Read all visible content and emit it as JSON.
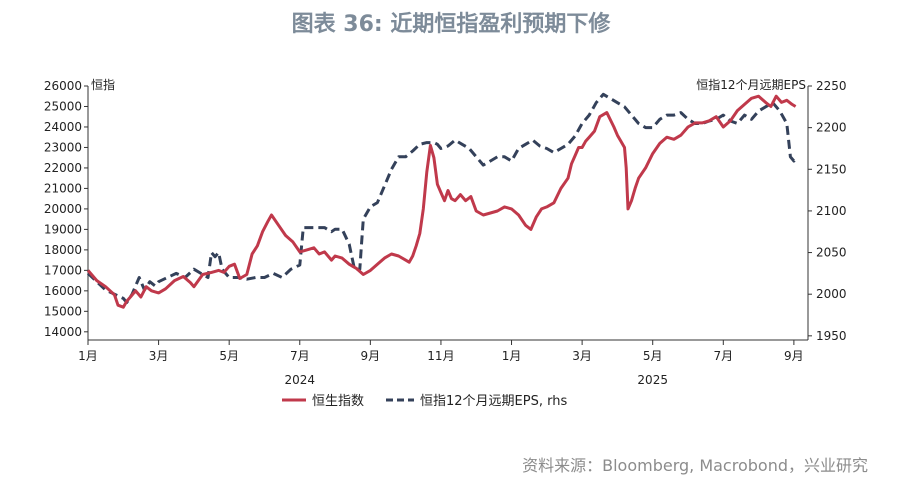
{
  "header": {
    "title": "图表 36: 近期恒指盈利预期下修"
  },
  "footer": {
    "source": "资料来源：Bloomberg, Macrobond，兴业研究"
  },
  "chart_data": {
    "type": "line",
    "title": "图表 36: 近期恒指盈利预期下修",
    "y_left_label": "恒指",
    "y_right_label": "恒指12个月远期EPS",
    "x_tick_labels": [
      "1月",
      "3月",
      "5月",
      "7月",
      "9月",
      "11月",
      "1月",
      "3月",
      "5月",
      "7月",
      "9月"
    ],
    "x_tick_months": [
      0,
      2,
      4,
      6,
      8,
      10,
      12,
      14,
      16,
      18,
      20
    ],
    "year_labels": [
      {
        "label": "2024",
        "month": 6
      },
      {
        "label": "2025",
        "month": 16
      }
    ],
    "x_range_months": [
      0,
      20.4
    ],
    "y_left_ticks": [
      14000,
      15000,
      16000,
      17000,
      18000,
      19000,
      20000,
      21000,
      22000,
      23000,
      24000,
      25000,
      26000
    ],
    "y_left_range": [
      13600,
      26000
    ],
    "y_right_ticks": [
      1950,
      2000,
      2050,
      2100,
      2150,
      2200,
      2250
    ],
    "y_right_range": [
      1945,
      2250
    ],
    "legend_position": "bottom",
    "grid": false,
    "series": [
      {
        "name": "恒生指数",
        "axis": "left",
        "color": "#c0394b",
        "style": "solid",
        "x": [
          0.0,
          0.25,
          0.5,
          0.75,
          0.85,
          1.0,
          1.1,
          1.2,
          1.35,
          1.5,
          1.65,
          1.8,
          2.0,
          2.2,
          2.45,
          2.7,
          2.9,
          3.0,
          3.25,
          3.5,
          3.7,
          3.85,
          4.0,
          4.15,
          4.3,
          4.5,
          4.65,
          4.8,
          4.95,
          5.1,
          5.2,
          5.4,
          5.6,
          5.8,
          6.0,
          6.2,
          6.4,
          6.55,
          6.7,
          6.9,
          7.0,
          7.2,
          7.4,
          7.5,
          7.6,
          7.8,
          8.0,
          8.2,
          8.4,
          8.6,
          8.8,
          9.0,
          9.1,
          9.2,
          9.3,
          9.4,
          9.5,
          9.6,
          9.7,
          9.8,
          9.9,
          10.0,
          10.1,
          10.2,
          10.3,
          10.4,
          10.55,
          10.7,
          10.85,
          11.0,
          11.2,
          11.4,
          11.6,
          11.8,
          12.0,
          12.2,
          12.4,
          12.55,
          12.7,
          12.85,
          13.0,
          13.2,
          13.4,
          13.6,
          13.7,
          13.8,
          13.9,
          14.0,
          14.1,
          14.2,
          14.35,
          14.5,
          14.7,
          14.9,
          15.0,
          15.1,
          15.2,
          15.25,
          15.3,
          15.4,
          15.5,
          15.6,
          15.8,
          16.0,
          16.2,
          16.4,
          16.6,
          16.8,
          17.0,
          17.2,
          17.4,
          17.6,
          17.8,
          18.0,
          18.2,
          18.4,
          18.6,
          18.8,
          19.0,
          19.2,
          19.35,
          19.5,
          19.65,
          19.8,
          19.95,
          20.05
        ],
        "y": [
          17000,
          16500,
          16200,
          15800,
          15300,
          15200,
          15500,
          15700,
          16000,
          15700,
          16200,
          16000,
          15900,
          16100,
          16500,
          16700,
          16400,
          16200,
          16800,
          16900,
          17000,
          16900,
          17200,
          17300,
          16600,
          16800,
          17800,
          18200,
          18900,
          19400,
          19700,
          19200,
          18700,
          18400,
          17900,
          18000,
          18100,
          17800,
          17900,
          17500,
          17700,
          17600,
          17300,
          17200,
          17100,
          16800,
          17000,
          17300,
          17600,
          17800,
          17700,
          17500,
          17400,
          17700,
          18200,
          18800,
          20000,
          21800,
          23100,
          22500,
          21200,
          20800,
          20400,
          20900,
          20500,
          20400,
          20700,
          20400,
          20600,
          19900,
          19700,
          19800,
          19900,
          20100,
          20000,
          19700,
          19200,
          19000,
          19600,
          20000,
          20100,
          20300,
          21000,
          21500,
          22200,
          22600,
          23000,
          23000,
          23300,
          23500,
          23800,
          24500,
          24700,
          24000,
          23600,
          23300,
          23000,
          22000,
          20000,
          20400,
          21000,
          21500,
          22000,
          22700,
          23200,
          23500,
          23400,
          23600,
          24000,
          24200,
          24200,
          24300,
          24500,
          24000,
          24300,
          24800,
          25100,
          25400,
          25500,
          25200,
          25000,
          25500,
          25200,
          25300,
          25100,
          25000
        ]
      },
      {
        "name": "恒指12个月远期EPS",
        "axis": "right",
        "color": "#34415a",
        "style": "dashed",
        "x": [
          0.0,
          0.25,
          0.5,
          0.75,
          1.0,
          1.1,
          1.25,
          1.35,
          1.45,
          1.6,
          1.75,
          1.9,
          2.0,
          2.25,
          2.5,
          2.75,
          3.0,
          3.2,
          3.4,
          3.5,
          3.6,
          3.7,
          3.8,
          3.9,
          4.0,
          4.25,
          4.5,
          4.75,
          5.0,
          5.25,
          5.5,
          5.75,
          6.0,
          6.1,
          6.3,
          6.5,
          6.7,
          6.9,
          7.0,
          7.2,
          7.4,
          7.55,
          7.7,
          7.75,
          7.8,
          8.0,
          8.2,
          8.4,
          8.6,
          8.8,
          9.0,
          9.2,
          9.4,
          9.6,
          9.8,
          9.9,
          10.0,
          10.2,
          10.4,
          10.6,
          10.8,
          11.0,
          11.2,
          11.4,
          11.6,
          11.8,
          12.0,
          12.2,
          12.4,
          12.6,
          12.8,
          13.0,
          13.2,
          13.4,
          13.6,
          13.8,
          14.0,
          14.2,
          14.4,
          14.6,
          14.8,
          15.0,
          15.2,
          15.4,
          15.6,
          15.8,
          16.0,
          16.2,
          16.4,
          16.6,
          16.8,
          17.0,
          17.2,
          17.4,
          17.6,
          17.8,
          18.0,
          18.2,
          18.4,
          18.6,
          18.8,
          19.0,
          19.2,
          19.4,
          19.6,
          19.8,
          19.9,
          20.0,
          20.05
        ],
        "y": [
          2025,
          2015,
          2005,
          2000,
          1995,
          1990,
          2000,
          2010,
          2020,
          2005,
          2015,
          2010,
          2015,
          2020,
          2025,
          2020,
          2030,
          2025,
          2020,
          2050,
          2045,
          2050,
          2030,
          2025,
          2020,
          2020,
          2018,
          2020,
          2020,
          2025,
          2020,
          2030,
          2035,
          2080,
          2080,
          2080,
          2080,
          2075,
          2078,
          2078,
          2060,
          2030,
          2030,
          2060,
          2090,
          2105,
          2110,
          2130,
          2150,
          2165,
          2165,
          2172,
          2180,
          2182,
          2182,
          2180,
          2175,
          2178,
          2185,
          2180,
          2175,
          2165,
          2155,
          2160,
          2165,
          2165,
          2160,
          2175,
          2180,
          2185,
          2178,
          2175,
          2170,
          2175,
          2180,
          2190,
          2205,
          2215,
          2230,
          2240,
          2235,
          2230,
          2225,
          2215,
          2205,
          2200,
          2200,
          2210,
          2215,
          2215,
          2218,
          2210,
          2205,
          2205,
          2208,
          2210,
          2215,
          2208,
          2205,
          2215,
          2210,
          2220,
          2225,
          2230,
          2220,
          2205,
          2165,
          2160,
          2165
        ]
      }
    ]
  }
}
